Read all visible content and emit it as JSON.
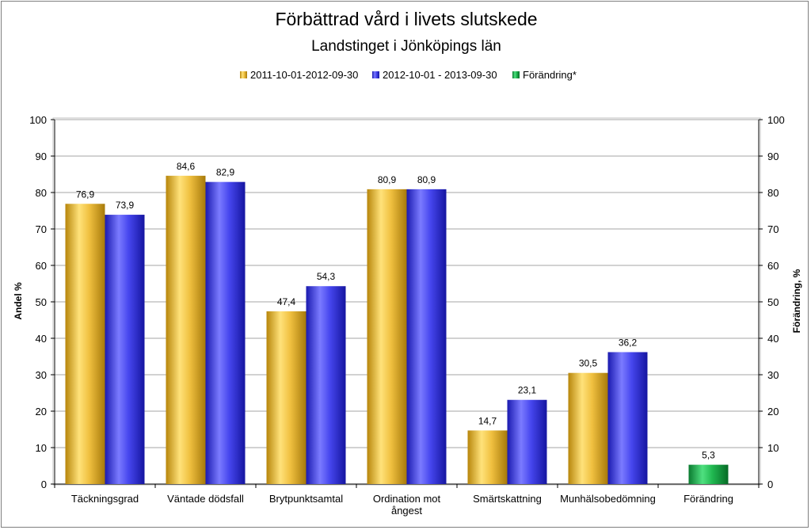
{
  "chart_data": {
    "type": "bar",
    "title": "Förbättrad vård i livets slutskede",
    "subtitle": "Landstinget i Jönköpings län",
    "ylabel": "Andel %",
    "y2label": "Förändring, %",
    "ylim": [
      0,
      100
    ],
    "y2lim": [
      0,
      100
    ],
    "yticks": [
      0,
      10,
      20,
      30,
      40,
      50,
      60,
      70,
      80,
      90,
      100
    ],
    "categories": [
      "Täckningsgrad",
      "Väntade dödsfall",
      "Brytpunktsamtal",
      "Ordination mot ångest",
      "Smärtskattning",
      "Munhälsobedömning",
      "Förändring"
    ],
    "category_lines": [
      [
        "Täckningsgrad"
      ],
      [
        "Väntade dödsfall"
      ],
      [
        "Brytpunktsamtal"
      ],
      [
        "Ordination mot",
        "ångest"
      ],
      [
        "Smärtskattning"
      ],
      [
        "Munhälsobedömning"
      ],
      [
        "Förändring"
      ]
    ],
    "legend_position": "top",
    "series": [
      {
        "name": "2011-10-01-2012-09-30",
        "color": "#e3b53a",
        "values": [
          76.9,
          84.6,
          47.4,
          80.9,
          14.7,
          30.5,
          null
        ],
        "labels": [
          "76,9",
          "84,6",
          "47,4",
          "80,9",
          "14,7",
          "30,5",
          null
        ]
      },
      {
        "name": "2012-10-01 - 2013-09-30",
        "color": "#3a3ae0",
        "values": [
          73.9,
          82.9,
          54.3,
          80.9,
          23.1,
          36.2,
          null
        ],
        "labels": [
          "73,9",
          "82,9",
          "54,3",
          "80,9",
          "23,1",
          "36,2",
          null
        ]
      },
      {
        "name": "Förändring*",
        "color": "#17a84a",
        "values": [
          null,
          null,
          null,
          null,
          null,
          null,
          5.3
        ],
        "labels": [
          null,
          null,
          null,
          null,
          null,
          null,
          "5,3"
        ]
      }
    ]
  }
}
